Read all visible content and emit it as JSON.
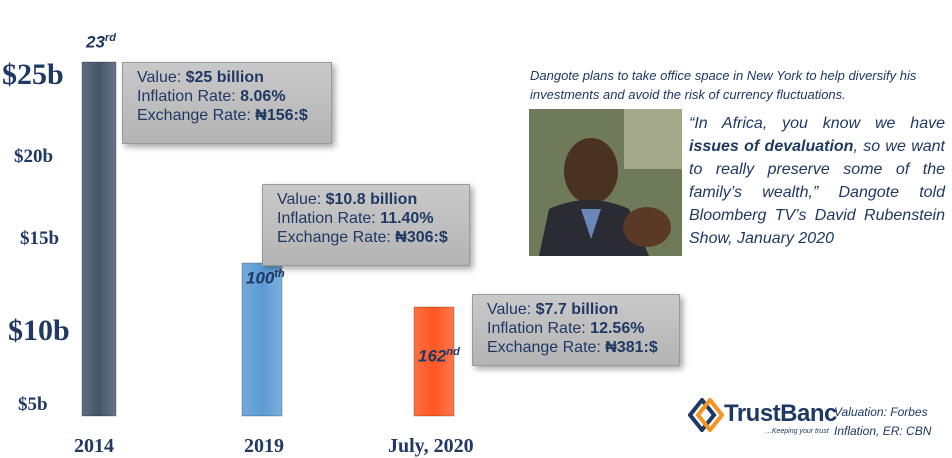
{
  "chart_data": {
    "type": "bar",
    "title": "",
    "categories": [
      "2014",
      "2019",
      "July, 2020"
    ],
    "values": [
      25,
      10.8,
      7.7
    ],
    "colors": [
      "#44546a",
      "#5b9bd5",
      "#ff5722"
    ],
    "y_tick_labels": [
      "$25b",
      "$20b",
      "$15b",
      "$10b",
      "$5b"
    ],
    "ranks": [
      {
        "num": "23",
        "suffix": "rd"
      },
      {
        "num": "100",
        "suffix": "th"
      },
      {
        "num": "162",
        "suffix": "nd"
      }
    ],
    "callouts": [
      {
        "value_label": "Value: ",
        "value": "$25 billion",
        "inflation_label": "Inflation Rate: ",
        "inflation": "8.06%",
        "exchange_label": "Exchange Rate: ",
        "exchange": "₦156:$"
      },
      {
        "value_label": "Value: ",
        "value": "$10.8 billion",
        "inflation_label": "Inflation Rate: ",
        "inflation": "11.40%",
        "exchange_label": "Exchange Rate: ",
        "exchange": "₦306:$"
      },
      {
        "value_label": "Value: ",
        "value": "$7.7 billion",
        "inflation_label": "Inflation Rate: ",
        "inflation": "12.56%",
        "exchange_label": "Exchange Rate: ",
        "exchange": "₦381:$"
      }
    ],
    "grid": false,
    "legend": "none"
  },
  "note": "Dangote plans to take office space in New York to help diversify his investments and avoid the risk of currency fluctuations.",
  "quote": {
    "part1": "“In Africa, you know we have ",
    "bold": "issues of devaluation",
    "part2": ", so we want to really preserve some of the family’s wealth,” Dangote told Bloomberg TV’s David Rubenstein Show, January 2020"
  },
  "logo": {
    "name": "TrustBanc",
    "tagline": "...Keeping your trust",
    "colors": [
      "#1f3864",
      "#f7941d"
    ]
  },
  "sources": {
    "valuation": "Valuation: Forbes",
    "inflation": "Inflation, ER: CBN"
  }
}
